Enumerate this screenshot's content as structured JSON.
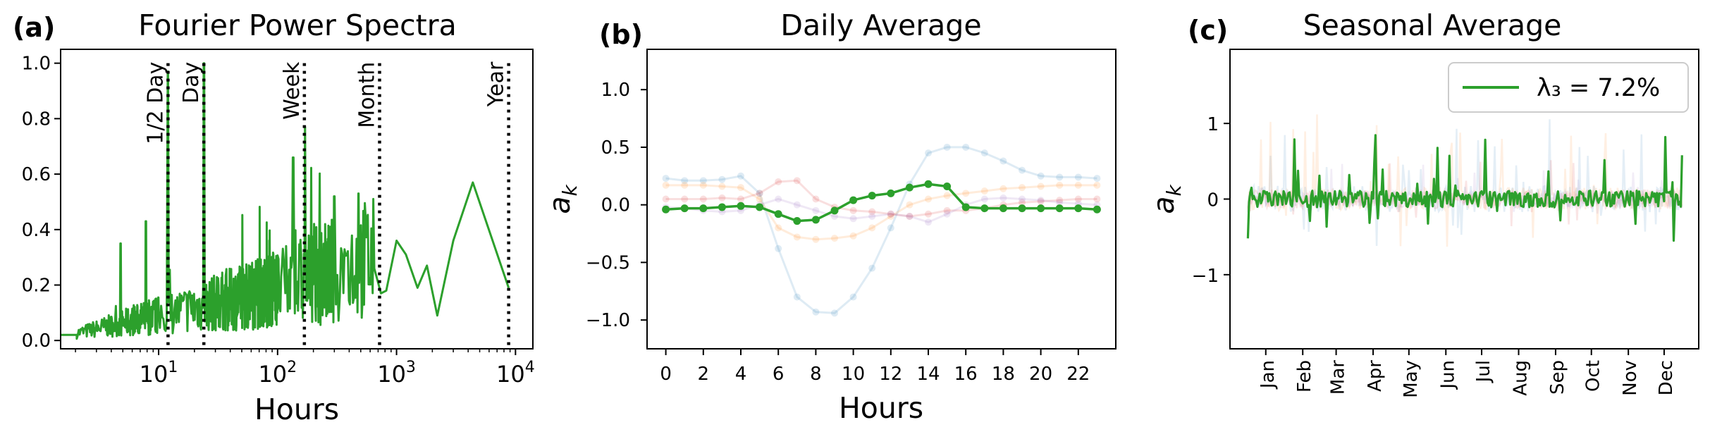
{
  "figure": {
    "panels": [
      {
        "label": "(a)",
        "title": "Fourier Power Spectra",
        "xlabel": "Hours",
        "ylabel": ""
      },
      {
        "label": "(b)",
        "title": "Daily Average",
        "xlabel": "Hours",
        "ylabel": "a_k"
      },
      {
        "label": "(c)",
        "title": "Seasonal Average",
        "xlabel": "",
        "ylabel": "a_k"
      }
    ],
    "legend_text": "λ₃ = 7.2%"
  },
  "colors": {
    "main": "#2ca02c",
    "faded_blue": "#1f77b4",
    "faded_orange": "#ff7f0e",
    "faded_red": "#d62728",
    "faded_purple": "#9467bd",
    "marker_line": "#000000"
  },
  "chart_data": [
    {
      "type": "line",
      "title": "Fourier Power Spectra",
      "xlabel": "Hours",
      "ylabel": "",
      "xscale": "log",
      "xlim": [
        1.5,
        14000
      ],
      "ylim": [
        -0.03,
        1.05
      ],
      "xticks": [
        10,
        100,
        1000,
        10000
      ],
      "xtick_labels": [
        "10¹",
        "10²",
        "10³",
        "10⁴"
      ],
      "yticks": [
        0.0,
        0.2,
        0.4,
        0.6,
        0.8,
        1.0
      ],
      "ytick_labels": [
        "0.0",
        "0.2",
        "0.4",
        "0.6",
        "0.8",
        "1.0"
      ],
      "vlines": [
        {
          "label": "1/2 Day",
          "x": 12
        },
        {
          "label": "Day",
          "x": 24
        },
        {
          "label": "Week",
          "x": 168
        },
        {
          "label": "Month",
          "x": 720
        },
        {
          "label": "Year",
          "x": 8760
        }
      ],
      "peaks": [
        {
          "x": 4.8,
          "y": 0.35
        },
        {
          "x": 7.8,
          "y": 0.43
        },
        {
          "x": 12,
          "y": 0.97
        },
        {
          "x": 24,
          "y": 1.0
        },
        {
          "x": 135,
          "y": 0.66
        },
        {
          "x": 170,
          "y": 0.77
        },
        {
          "x": 300,
          "y": 0.52
        },
        {
          "x": 480,
          "y": 0.53
        }
      ],
      "tail": [
        {
          "x": 650,
          "y": 0.26
        },
        {
          "x": 740,
          "y": 0.17
        },
        {
          "x": 820,
          "y": 0.18
        },
        {
          "x": 1000,
          "y": 0.36
        },
        {
          "x": 1200,
          "y": 0.31
        },
        {
          "x": 1500,
          "y": 0.19
        },
        {
          "x": 1800,
          "y": 0.27
        },
        {
          "x": 2200,
          "y": 0.09
        },
        {
          "x": 3000,
          "y": 0.36
        },
        {
          "x": 4380,
          "y": 0.57
        },
        {
          "x": 8760,
          "y": 0.19
        }
      ]
    },
    {
      "type": "line",
      "title": "Daily Average",
      "xlabel": "Hours",
      "ylabel": "a_k",
      "xlim": [
        -1,
        24
      ],
      "ylim": [
        -1.25,
        1.35
      ],
      "x": [
        0,
        1,
        2,
        3,
        4,
        5,
        6,
        7,
        8,
        9,
        10,
        11,
        12,
        13,
        14,
        15,
        16,
        17,
        18,
        19,
        20,
        21,
        22,
        23
      ],
      "xticks": [
        0,
        2,
        4,
        6,
        8,
        10,
        12,
        14,
        16,
        18,
        20,
        22
      ],
      "xtick_labels": [
        "0",
        "2",
        "4",
        "6",
        "8",
        "10",
        "12",
        "14",
        "16",
        "18",
        "20",
        "22"
      ],
      "yticks": [
        -1.0,
        -0.5,
        0.0,
        0.5,
        1.0
      ],
      "ytick_labels": [
        "−1.0",
        "−0.5",
        "0.0",
        "0.5",
        "1.0"
      ],
      "series": [
        {
          "color": "#1f77b4",
          "faded": true,
          "values": [
            0.23,
            0.21,
            0.21,
            0.22,
            0.25,
            0.1,
            -0.38,
            -0.8,
            -0.93,
            -0.94,
            -0.8,
            -0.55,
            -0.2,
            0.18,
            0.45,
            0.5,
            0.5,
            0.45,
            0.38,
            0.3,
            0.25,
            0.24,
            0.24,
            0.23
          ]
        },
        {
          "color": "#ff7f0e",
          "faded": true,
          "values": [
            0.17,
            0.17,
            0.17,
            0.16,
            0.15,
            0.05,
            -0.2,
            -0.28,
            -0.3,
            -0.29,
            -0.27,
            -0.2,
            -0.1,
            0.0,
            0.05,
            0.08,
            0.1,
            0.12,
            0.14,
            0.15,
            0.16,
            0.17,
            0.17,
            0.17
          ]
        },
        {
          "color": "#d62728",
          "faded": true,
          "values": [
            0.05,
            0.05,
            0.05,
            0.06,
            0.05,
            0.1,
            0.2,
            0.21,
            0.05,
            -0.02,
            -0.05,
            -0.06,
            -0.08,
            -0.1,
            -0.08,
            -0.05,
            -0.05,
            -0.03,
            0.0,
            0.02,
            0.03,
            0.04,
            0.05,
            0.05
          ]
        },
        {
          "color": "#9467bd",
          "faded": true,
          "values": [
            -0.02,
            -0.03,
            -0.05,
            -0.06,
            -0.05,
            0.0,
            0.05,
            0.0,
            -0.05,
            -0.1,
            -0.12,
            -0.1,
            -0.08,
            -0.1,
            -0.15,
            -0.08,
            0.0,
            0.05,
            0.06,
            0.05,
            0.04,
            0.02,
            0.01,
            0.0
          ]
        },
        {
          "color": "#2ca02c",
          "faded": false,
          "values": [
            -0.04,
            -0.03,
            -0.03,
            -0.02,
            -0.01,
            -0.02,
            -0.08,
            -0.14,
            -0.13,
            -0.05,
            0.04,
            0.08,
            0.1,
            0.15,
            0.18,
            0.16,
            -0.02,
            -0.03,
            -0.03,
            -0.03,
            -0.03,
            -0.03,
            -0.03,
            -0.04
          ]
        }
      ]
    },
    {
      "type": "line",
      "title": "Seasonal Average",
      "xlabel": "",
      "ylabel": "a_k",
      "xlim": [
        -15,
        378
      ],
      "ylim": [
        -1.98,
        1.98
      ],
      "xticks": [
        15,
        46,
        74,
        105,
        135,
        166,
        196,
        227,
        258,
        288,
        319,
        349
      ],
      "xtick_labels": [
        "Jan",
        "Feb",
        "Mar",
        "Apr",
        "May",
        "Jun",
        "Jul",
        "Aug",
        "Sep",
        "Oct",
        "Nov",
        "Dec"
      ],
      "yticks": [
        -1,
        0,
        1
      ],
      "ytick_labels": [
        "−1",
        "0",
        "1"
      ],
      "legend": [
        {
          "label": "λ₃ = 7.2%",
          "color": "#2ca02c"
        }
      ],
      "legend_position": "upper right",
      "series_note": "daily values, day of year 0–364; green series shown, faded blue/orange/red/purple series behind"
    }
  ]
}
